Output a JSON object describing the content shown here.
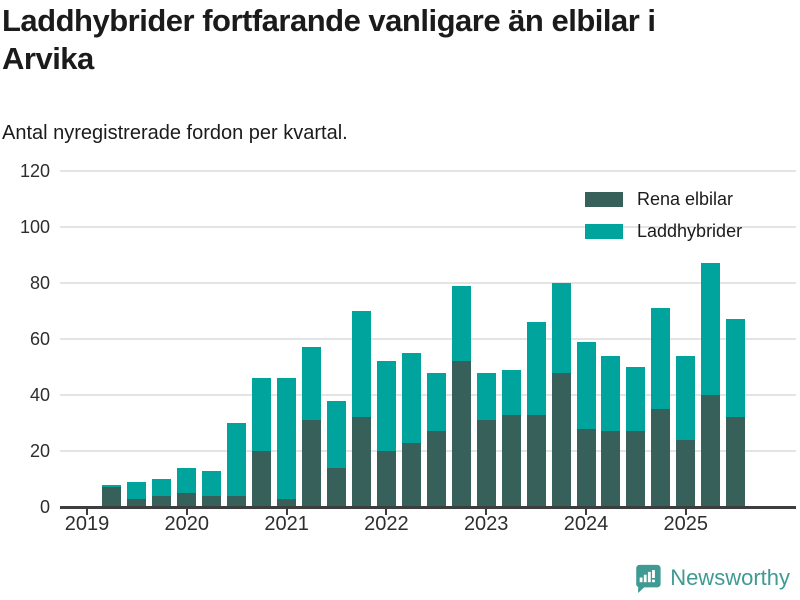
{
  "header": {
    "title": "Laddhybrider fortfarande vanligare än elbilar i Arvika",
    "subtitle": "Antal nyregistrerade fordon per kvartal."
  },
  "chart_data": {
    "type": "bar",
    "stacked": true,
    "title": "Laddhybrider fortfarande vanligare än elbilar i Arvika",
    "subtitle": "Antal nyregistrerade fordon per kvartal.",
    "categories": [
      "2019 Q2",
      "2019 Q3",
      "2019 Q4",
      "2020 Q1",
      "2020 Q2",
      "2020 Q3",
      "2020 Q4",
      "2021 Q1",
      "2021 Q2",
      "2021 Q3",
      "2021 Q4",
      "2022 Q1",
      "2022 Q2",
      "2022 Q3",
      "2022 Q4",
      "2023 Q1",
      "2023 Q2",
      "2023 Q3",
      "2023 Q4",
      "2024 Q1",
      "2024 Q2",
      "2024 Q3",
      "2024 Q4",
      "2025 Q1",
      "2025 Q2",
      "2025 Q3"
    ],
    "series": [
      {
        "name": "Rena elbilar",
        "color": "#37605a",
        "values": [
          7,
          3,
          4,
          5,
          4,
          4,
          20,
          3,
          31,
          14,
          32,
          20,
          23,
          27,
          52,
          31,
          33,
          33,
          48,
          28,
          27,
          27,
          35,
          24,
          40,
          32
        ]
      },
      {
        "name": "Laddhybrider",
        "color": "#00a49c",
        "values": [
          1,
          6,
          6,
          9,
          9,
          26,
          26,
          43,
          26,
          24,
          38,
          32,
          32,
          21,
          27,
          17,
          16,
          33,
          32,
          31,
          27,
          23,
          36,
          30,
          47,
          35
        ]
      }
    ],
    "totals": [
      8,
      9,
      10,
      14,
      13,
      30,
      46,
      46,
      57,
      38,
      70,
      52,
      55,
      48,
      79,
      48,
      49,
      66,
      80,
      59,
      54,
      50,
      71,
      54,
      87,
      67
    ],
    "x_tick_labels": [
      "2019",
      "2020",
      "2021",
      "2022",
      "2023",
      "2024",
      "2025"
    ],
    "yticks": [
      0,
      20,
      40,
      60,
      80,
      100,
      120
    ],
    "ylim": [
      0,
      120
    ],
    "grid": true,
    "legend_position": "top-right"
  },
  "colors": {
    "elbilar": "#37605a",
    "laddhybrider": "#00a49c",
    "grid": "#e4e4e4",
    "axis": "#3d3d3d",
    "brand_teal": "#3f9a93"
  },
  "footer": {
    "brand": "Newsworthy"
  }
}
